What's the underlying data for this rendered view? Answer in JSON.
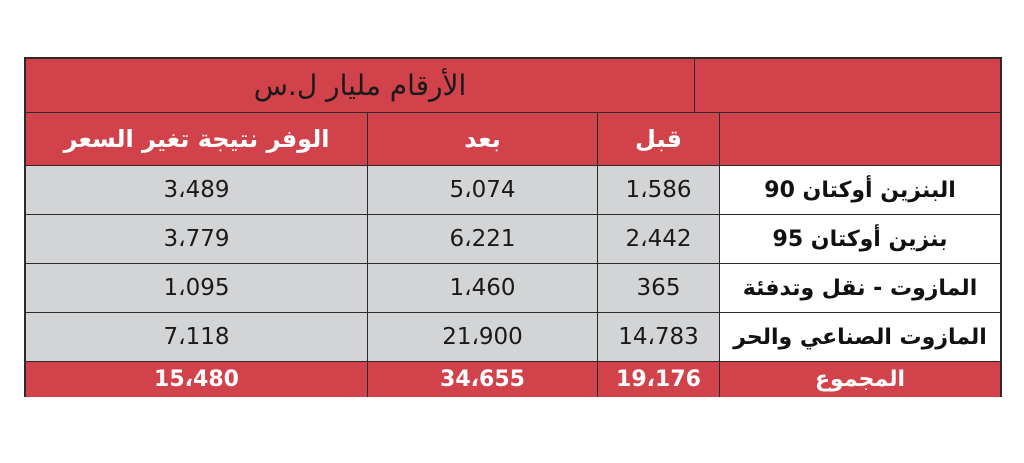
{
  "table": {
    "title": "الأرقام مليار ل.س",
    "headers": {
      "savings": "الوفر نتيجة تغير السعر",
      "after": "بعد",
      "before": "قبل"
    },
    "rows": [
      {
        "label": "البنزين أوكتان 90",
        "before": "1،586",
        "after": "5،074",
        "savings": "3،489"
      },
      {
        "label": "بنزين أوكتان 95",
        "before": "2،442",
        "after": "6،221",
        "savings": "3،779"
      },
      {
        "label": "المازوت - نقل وتدفئة",
        "before": "365",
        "after": "1،460",
        "savings": "1،095"
      },
      {
        "label": "المازوت الصناعي والحر",
        "before": "14،783",
        "after": "21،900",
        "savings": "7،118"
      }
    ],
    "total": {
      "label": "المجموع",
      "before": "19،176",
      "after": "34،655",
      "savings": "15،480"
    },
    "colors": {
      "red": "#d1424b",
      "gray": "#d3d4d6",
      "border": "#2b2b2b"
    }
  }
}
